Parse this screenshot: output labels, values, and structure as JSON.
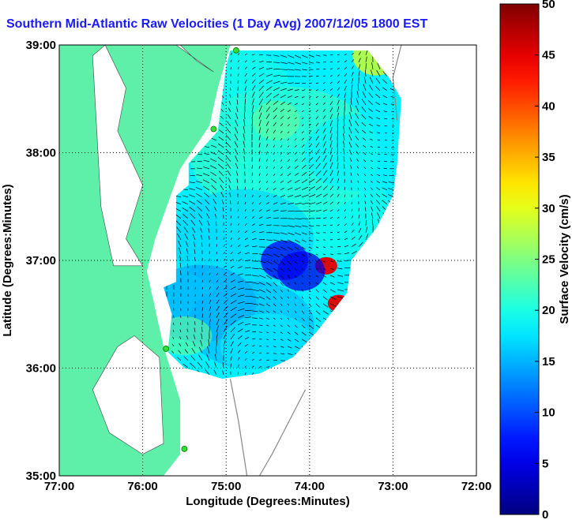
{
  "chart_data": {
    "type": "heatmap",
    "title": "Southern Mid-Atlantic Raw Velocities (1 Day Avg) 2007/12/05 1800 EST",
    "xlabel": "Longitude (Degrees:Minutes)",
    "ylabel": "Latitude (Degrees:Minutes)",
    "colorbar_label": "Surface Velocity (cm/s)",
    "x_ticks": [
      "77:00",
      "76:00",
      "75:00",
      "74:00",
      "73:00",
      "72:00"
    ],
    "y_ticks": [
      "35:00",
      "36:00",
      "37:00",
      "38:00",
      "39:00"
    ],
    "xlim": [
      -77,
      -72
    ],
    "ylim": [
      35,
      39
    ],
    "colorbar_ticks": [
      "0",
      "5",
      "10",
      "15",
      "20",
      "25",
      "30",
      "35",
      "40",
      "45",
      "50"
    ],
    "clim": [
      0,
      50
    ],
    "grid": true,
    "colormap": "jet",
    "land_color": "#5ef0a8",
    "grid_color": "#000000",
    "site_marker_color": "#33dd33",
    "sites": [
      {
        "lon": -74.88,
        "lat": 38.95
      },
      {
        "lon": -75.15,
        "lat": 38.22
      },
      {
        "lon": -75.72,
        "lat": 36.18
      },
      {
        "lon": -75.5,
        "lat": 35.25
      }
    ],
    "hotspots": [
      {
        "lon": -73.8,
        "lat": 36.95,
        "value": 45
      },
      {
        "lon": -73.65,
        "lat": 36.6,
        "value": 45
      },
      {
        "lon": -73.2,
        "lat": 38.9,
        "value": 30
      },
      {
        "lon": -74.1,
        "lat": 36.9,
        "value": 5
      },
      {
        "lon": -74.3,
        "lat": 37.0,
        "value": 6
      },
      {
        "lon": -74.4,
        "lat": 38.3,
        "value": 23
      }
    ]
  }
}
